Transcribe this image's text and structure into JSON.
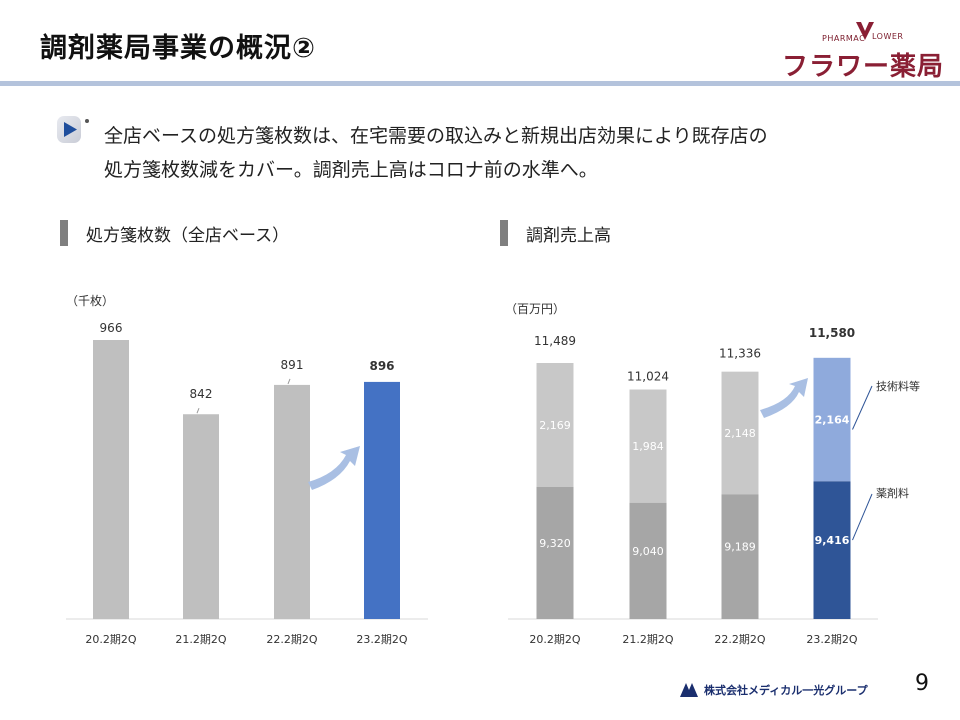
{
  "title": "調剤薬局事業の概況②",
  "logo": {
    "line1": "PHARMAC",
    "line2": "LOWER",
    "main": "フラワー薬局"
  },
  "lead": {
    "line1": "全店ベースの処方箋枚数は、在宅需要の取込みと新規出店効果により既存店の",
    "line2": "処方箋枚数減をカバー。調剤売上高はコロナ前の水準へ。"
  },
  "left_section": {
    "heading": "処方箋枚数（全店ベース）",
    "unit": "（千枚）"
  },
  "right_section": {
    "heading": "調剤売上高",
    "unit": "（百万円）"
  },
  "colors": {
    "gray_bar": "#bfbfbf",
    "highlight_blue": "#4472c4",
    "dark_gray": "#a6a6a6",
    "light_gray": "#c8c8c8",
    "navy": "#2f5597",
    "light_blue": "#8faadc",
    "arrow": "#a9bfe3"
  },
  "chart_data": [
    {
      "type": "bar",
      "categories": [
        "20.2期2Q",
        "21.2期2Q",
        "22.2期2Q",
        "23.2期2Q"
      ],
      "values": [
        966,
        842,
        891,
        896
      ],
      "title": "処方箋枚数（全店ベース）",
      "ylabel": "（千枚）",
      "ylim": [
        500,
        966
      ],
      "highlight_index": 3
    },
    {
      "type": "bar",
      "stacked": true,
      "categories": [
        "20.2期2Q",
        "21.2期2Q",
        "22.2期2Q",
        "23.2期2Q"
      ],
      "series": [
        {
          "name": "薬剤料",
          "values": [
            9320,
            9040,
            9189,
            9416
          ]
        },
        {
          "name": "技術料等",
          "values": [
            2169,
            1984,
            2148,
            2164
          ]
        }
      ],
      "totals": [
        11489,
        11024,
        11336,
        11580
      ],
      "title": "調剤売上高",
      "ylabel": "（百万円）",
      "highlight_index": 3
    }
  ],
  "page_number": "9",
  "footer": {
    "company": "株式会社メディカル一光グループ"
  }
}
